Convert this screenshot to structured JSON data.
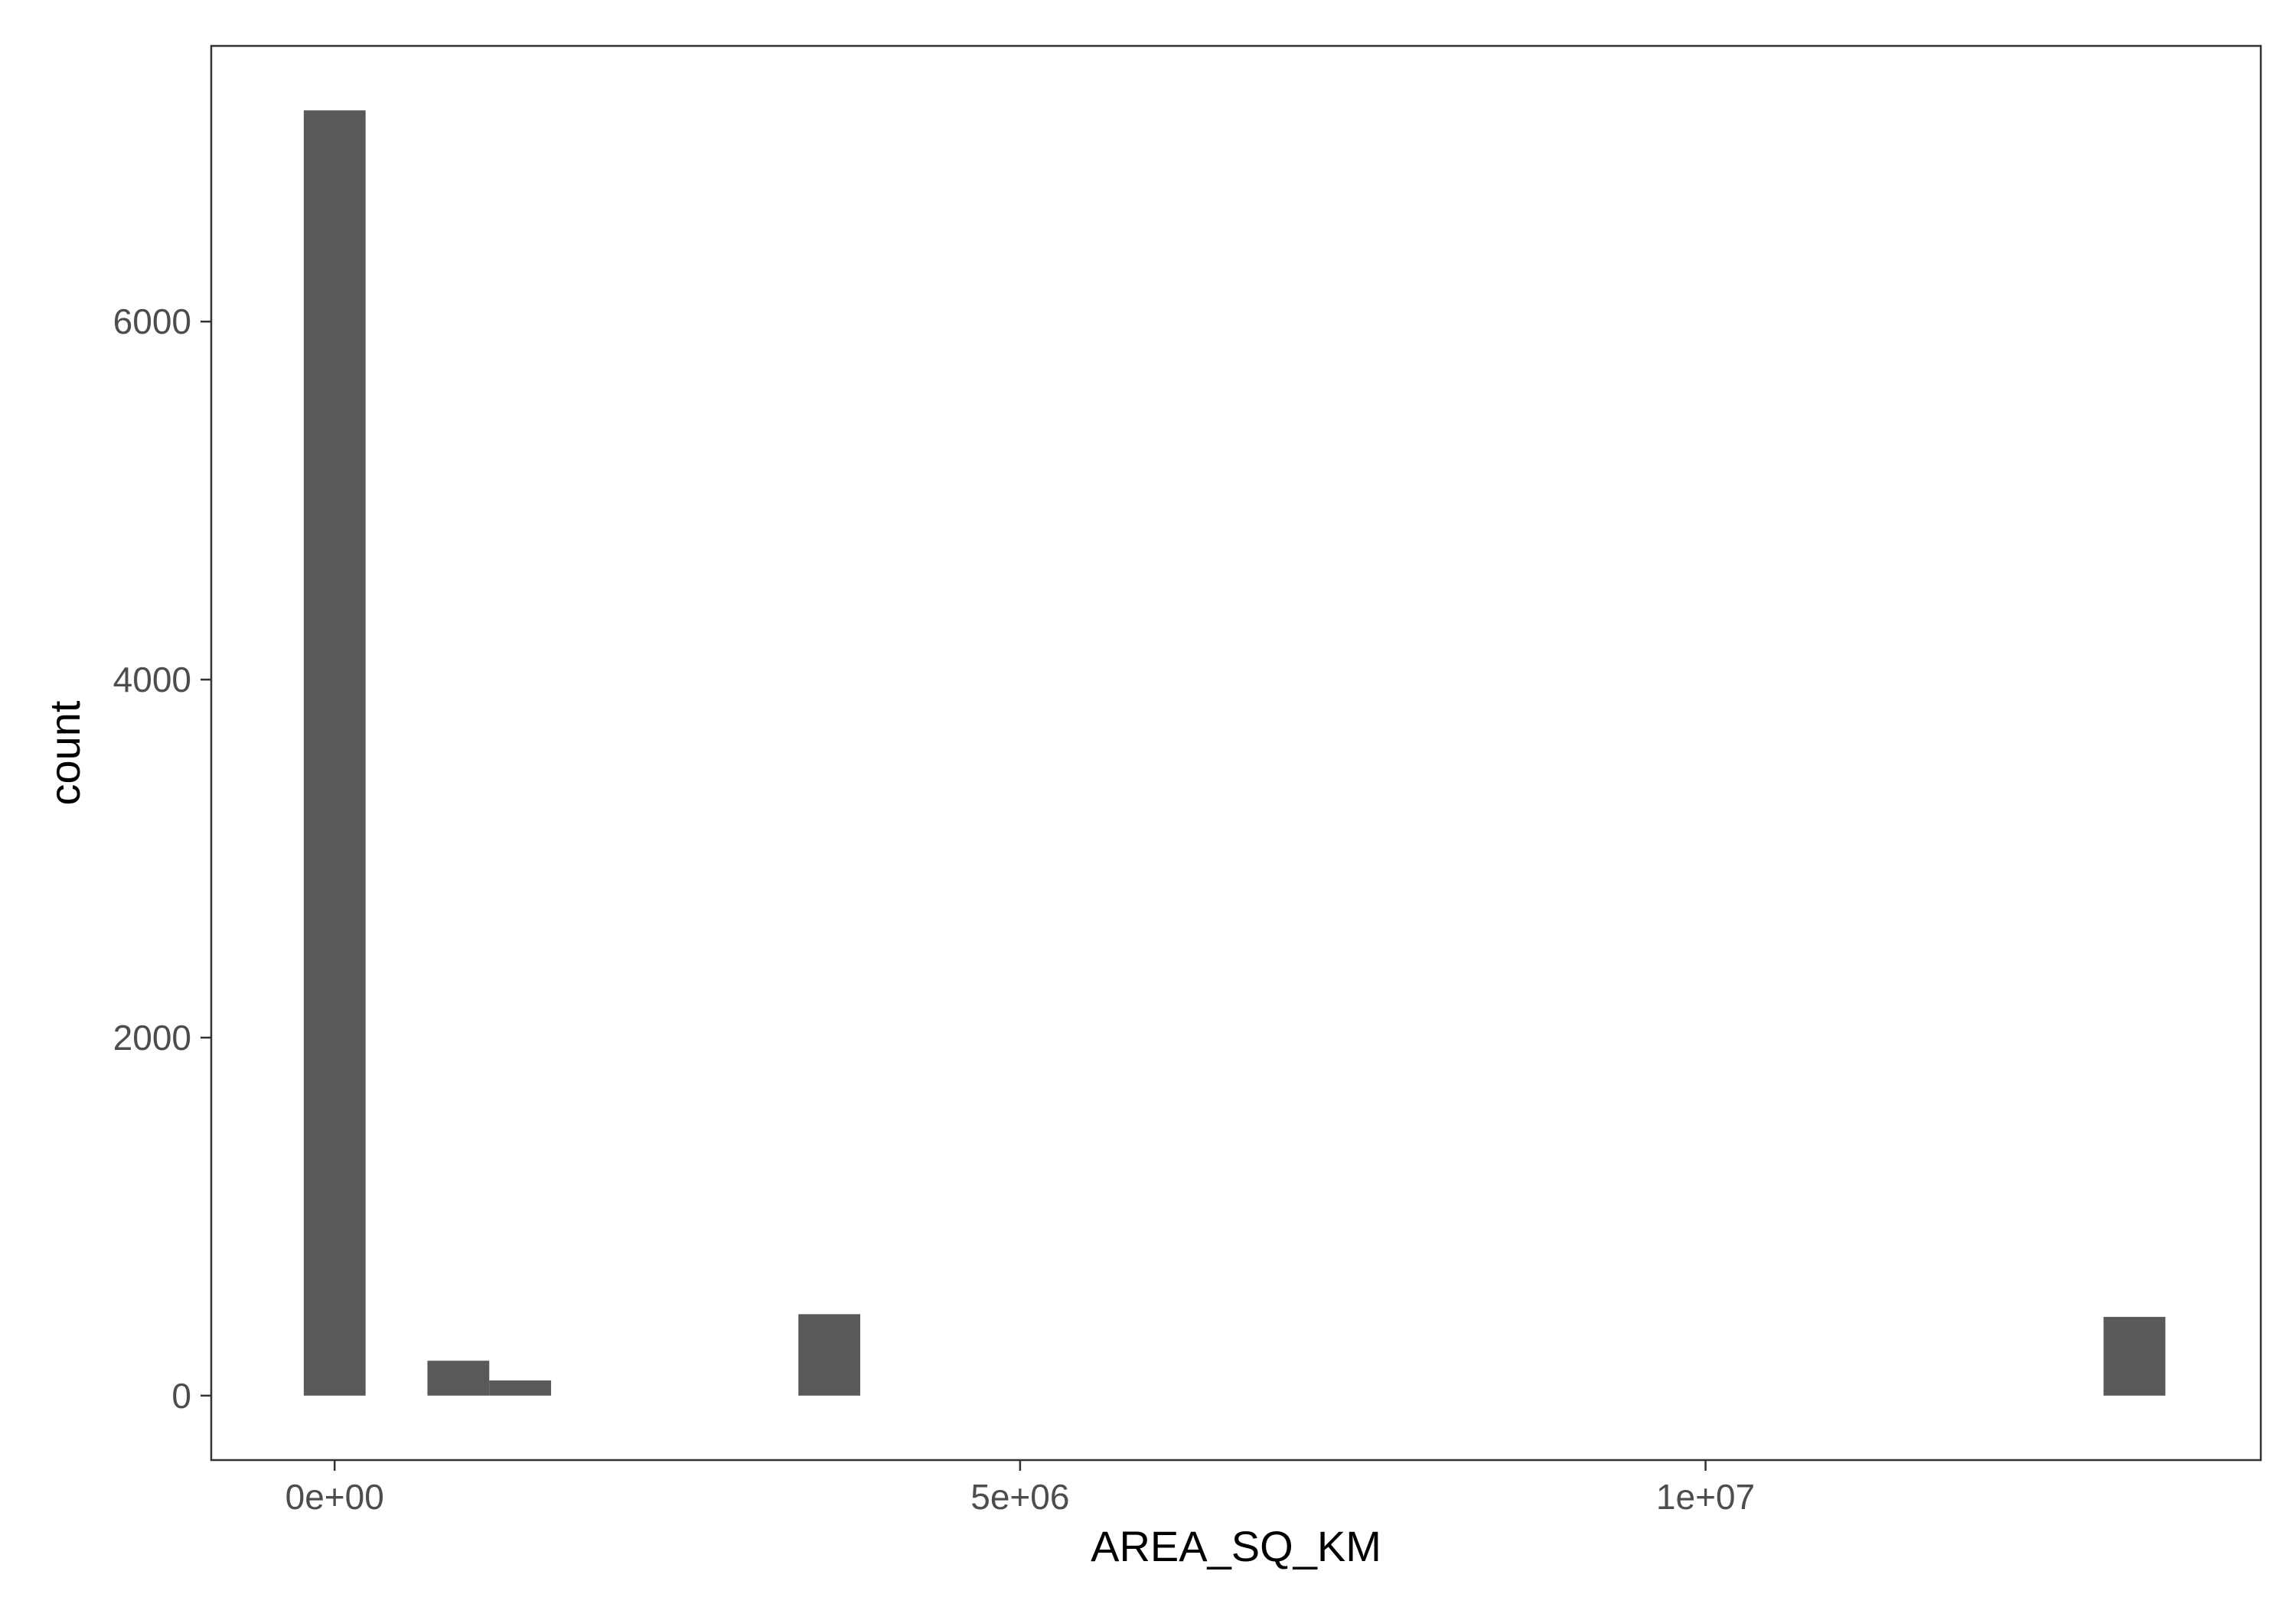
{
  "chart_data": {
    "type": "bar",
    "subtype": "histogram",
    "title": "",
    "xlabel": "AREA_SQ_KM",
    "ylabel": "count",
    "xlim": [
      -900000,
      14050000
    ],
    "ylim": [
      -360,
      7540
    ],
    "x_ticks": [
      {
        "value": 0,
        "label": "0e+00"
      },
      {
        "value": 5000000,
        "label": "5e+06"
      },
      {
        "value": 10000000,
        "label": "1e+07"
      }
    ],
    "y_ticks": [
      {
        "value": 0,
        "label": "0"
      },
      {
        "value": 2000,
        "label": "2000"
      },
      {
        "value": 4000,
        "label": "4000"
      },
      {
        "value": 6000,
        "label": "6000"
      }
    ],
    "bin_width": 451000,
    "bins": [
      {
        "x_start": -225000,
        "x_end": 226000,
        "count": 7180
      },
      {
        "x_start": 677000,
        "x_end": 1128000,
        "count": 195
      },
      {
        "x_start": 1128000,
        "x_end": 1579000,
        "count": 85
      },
      {
        "x_start": 3383000,
        "x_end": 3834000,
        "count": 455
      },
      {
        "x_start": 12903000,
        "x_end": 13354000,
        "count": 440
      }
    ],
    "grid": false,
    "colors": {
      "bar": "#595959",
      "panel_border": "#333333",
      "tick_label": "#4d4d4d",
      "axis_title": "#000000"
    }
  }
}
